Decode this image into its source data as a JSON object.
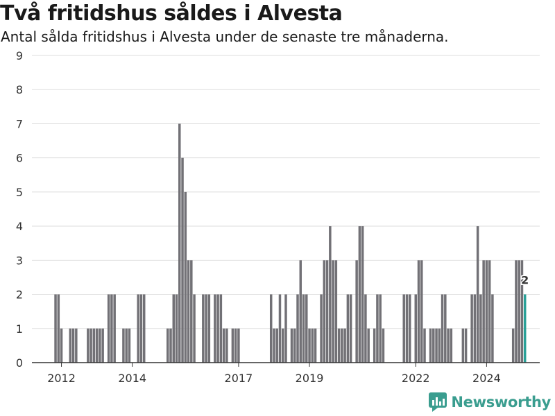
{
  "title": "Två fritidshus såldes i Alvesta",
  "subtitle": "Antal sålda fritidshus i Alvesta under de senaste tre månaderna.",
  "brand": {
    "name": "Newsworthy",
    "icon": "newsworthy-logo-icon",
    "color": "#3a9d8f"
  },
  "colors": {
    "bar": "#727176",
    "highlight": "#2aa198",
    "grid": "#dddddd"
  },
  "chart_data": {
    "type": "bar",
    "title": "Två fritidshus såldes i Alvesta",
    "subtitle": "Antal sålda fritidshus i Alvesta under de senaste tre månaderna.",
    "xlabel": "",
    "ylabel": "",
    "ylim": [
      0,
      9
    ],
    "yticks": [
      0,
      1,
      2,
      3,
      4,
      5,
      6,
      7,
      8,
      9
    ],
    "grid": true,
    "x_start": "2011-03",
    "x_end": "2025-07",
    "xticks": [
      {
        "label": "2012",
        "date": "2012-01"
      },
      {
        "label": "2014",
        "date": "2014-01"
      },
      {
        "label": "2017",
        "date": "2017-01"
      },
      {
        "label": "2019",
        "date": "2019-01"
      },
      {
        "label": "2022",
        "date": "2022-01"
      },
      {
        "label": "2024",
        "date": "2024-01"
      }
    ],
    "period": "3 months rolling, monthly",
    "series": [
      {
        "values": [
          {
            "x": "2011-11",
            "y": 2
          },
          {
            "x": "2011-12",
            "y": 2
          },
          {
            "x": "2012-01",
            "y": 1
          },
          {
            "x": "2012-04",
            "y": 1
          },
          {
            "x": "2012-05",
            "y": 1
          },
          {
            "x": "2012-06",
            "y": 1
          },
          {
            "x": "2012-10",
            "y": 1
          },
          {
            "x": "2012-11",
            "y": 1
          },
          {
            "x": "2012-12",
            "y": 1
          },
          {
            "x": "2013-01",
            "y": 1
          },
          {
            "x": "2013-02",
            "y": 1
          },
          {
            "x": "2013-03",
            "y": 1
          },
          {
            "x": "2013-05",
            "y": 2
          },
          {
            "x": "2013-06",
            "y": 2
          },
          {
            "x": "2013-07",
            "y": 2
          },
          {
            "x": "2013-10",
            "y": 1
          },
          {
            "x": "2013-11",
            "y": 1
          },
          {
            "x": "2013-12",
            "y": 1
          },
          {
            "x": "2014-03",
            "y": 2
          },
          {
            "x": "2014-04",
            "y": 2
          },
          {
            "x": "2014-05",
            "y": 2
          },
          {
            "x": "2015-01",
            "y": 1
          },
          {
            "x": "2015-02",
            "y": 1
          },
          {
            "x": "2015-03",
            "y": 2
          },
          {
            "x": "2015-04",
            "y": 2
          },
          {
            "x": "2015-05",
            "y": 7
          },
          {
            "x": "2015-06",
            "y": 6
          },
          {
            "x": "2015-07",
            "y": 5
          },
          {
            "x": "2015-08",
            "y": 3
          },
          {
            "x": "2015-09",
            "y": 3
          },
          {
            "x": "2015-10",
            "y": 2
          },
          {
            "x": "2016-01",
            "y": 2
          },
          {
            "x": "2016-02",
            "y": 2
          },
          {
            "x": "2016-03",
            "y": 2
          },
          {
            "x": "2016-05",
            "y": 2
          },
          {
            "x": "2016-06",
            "y": 2
          },
          {
            "x": "2016-07",
            "y": 2
          },
          {
            "x": "2016-08",
            "y": 1
          },
          {
            "x": "2016-09",
            "y": 1
          },
          {
            "x": "2016-11",
            "y": 1
          },
          {
            "x": "2016-12",
            "y": 1
          },
          {
            "x": "2017-01",
            "y": 1
          },
          {
            "x": "2017-12",
            "y": 2
          },
          {
            "x": "2018-01",
            "y": 1
          },
          {
            "x": "2018-02",
            "y": 1
          },
          {
            "x": "2018-03",
            "y": 2
          },
          {
            "x": "2018-04",
            "y": 1
          },
          {
            "x": "2018-05",
            "y": 2
          },
          {
            "x": "2018-07",
            "y": 1
          },
          {
            "x": "2018-08",
            "y": 1
          },
          {
            "x": "2018-09",
            "y": 2
          },
          {
            "x": "2018-10",
            "y": 3
          },
          {
            "x": "2018-11",
            "y": 2
          },
          {
            "x": "2018-12",
            "y": 2
          },
          {
            "x": "2019-01",
            "y": 1
          },
          {
            "x": "2019-02",
            "y": 1
          },
          {
            "x": "2019-03",
            "y": 1
          },
          {
            "x": "2019-05",
            "y": 2
          },
          {
            "x": "2019-06",
            "y": 3
          },
          {
            "x": "2019-07",
            "y": 3
          },
          {
            "x": "2019-08",
            "y": 4
          },
          {
            "x": "2019-09",
            "y": 3
          },
          {
            "x": "2019-10",
            "y": 3
          },
          {
            "x": "2019-11",
            "y": 1
          },
          {
            "x": "2019-12",
            "y": 1
          },
          {
            "x": "2020-01",
            "y": 1
          },
          {
            "x": "2020-02",
            "y": 2
          },
          {
            "x": "2020-03",
            "y": 2
          },
          {
            "x": "2020-05",
            "y": 3
          },
          {
            "x": "2020-06",
            "y": 4
          },
          {
            "x": "2020-07",
            "y": 4
          },
          {
            "x": "2020-08",
            "y": 2
          },
          {
            "x": "2020-09",
            "y": 1
          },
          {
            "x": "2020-11",
            "y": 1
          },
          {
            "x": "2020-12",
            "y": 2
          },
          {
            "x": "2021-01",
            "y": 2
          },
          {
            "x": "2021-02",
            "y": 1
          },
          {
            "x": "2021-09",
            "y": 2
          },
          {
            "x": "2021-10",
            "y": 2
          },
          {
            "x": "2021-11",
            "y": 2
          },
          {
            "x": "2022-01",
            "y": 2
          },
          {
            "x": "2022-02",
            "y": 3
          },
          {
            "x": "2022-03",
            "y": 3
          },
          {
            "x": "2022-04",
            "y": 1
          },
          {
            "x": "2022-06",
            "y": 1
          },
          {
            "x": "2022-07",
            "y": 1
          },
          {
            "x": "2022-08",
            "y": 1
          },
          {
            "x": "2022-09",
            "y": 1
          },
          {
            "x": "2022-10",
            "y": 2
          },
          {
            "x": "2022-11",
            "y": 2
          },
          {
            "x": "2022-12",
            "y": 1
          },
          {
            "x": "2023-01",
            "y": 1
          },
          {
            "x": "2023-05",
            "y": 1
          },
          {
            "x": "2023-06",
            "y": 1
          },
          {
            "x": "2023-08",
            "y": 2
          },
          {
            "x": "2023-09",
            "y": 2
          },
          {
            "x": "2023-10",
            "y": 4
          },
          {
            "x": "2023-11",
            "y": 2
          },
          {
            "x": "2023-12",
            "y": 3
          },
          {
            "x": "2024-01",
            "y": 3
          },
          {
            "x": "2024-02",
            "y": 3
          },
          {
            "x": "2024-03",
            "y": 2
          },
          {
            "x": "2024-10",
            "y": 1
          },
          {
            "x": "2024-11",
            "y": 3
          },
          {
            "x": "2024-12",
            "y": 3
          },
          {
            "x": "2025-01",
            "y": 3
          },
          {
            "x": "2025-02",
            "y": 2,
            "highlight": true,
            "label": "2"
          }
        ]
      }
    ]
  }
}
